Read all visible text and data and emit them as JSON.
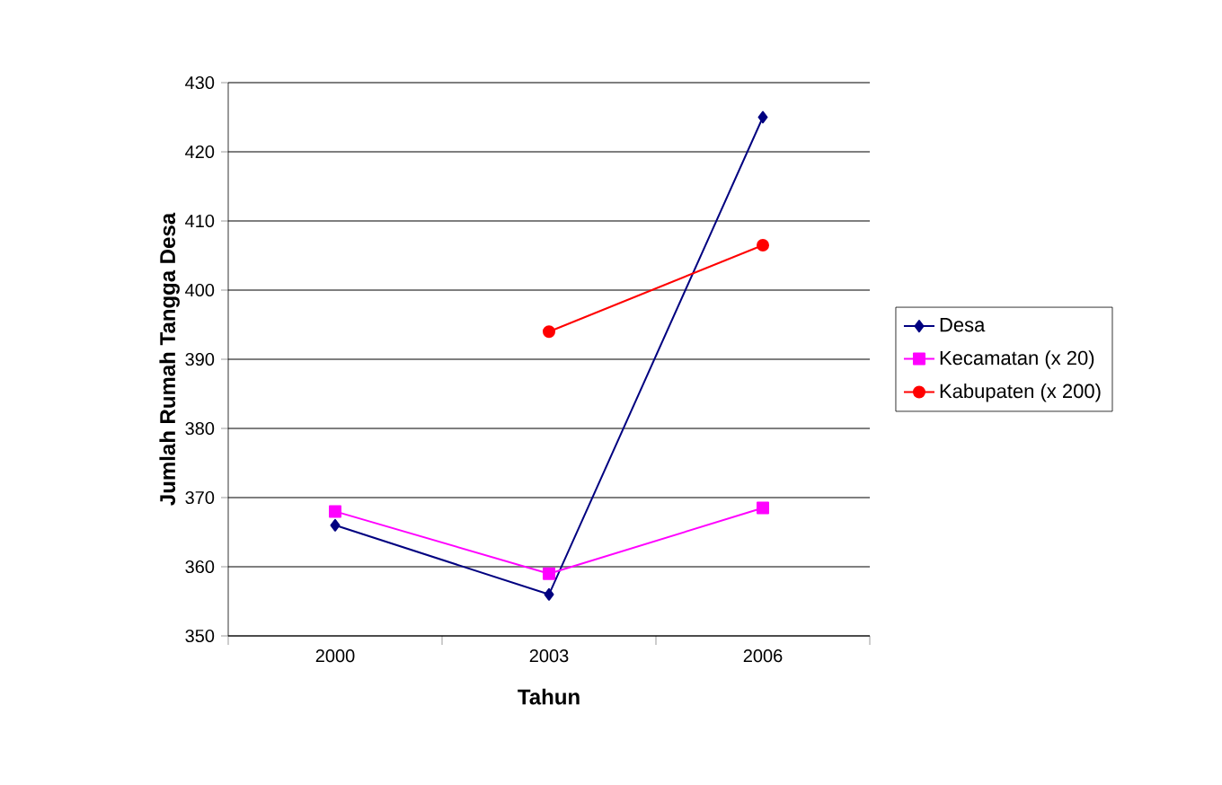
{
  "chart_data": {
    "type": "line",
    "xlabel": "Tahun",
    "ylabel": "Jumlah Rumah Tangga Desa",
    "categories": [
      "2000",
      "2003",
      "2006"
    ],
    "series": [
      {
        "name": "Desa",
        "color": "#000080",
        "marker": "diamond",
        "values": [
          366,
          356,
          425
        ]
      },
      {
        "name": "Kecamatan (x 20)",
        "color": "#ff00ff",
        "marker": "square",
        "values": [
          368,
          359,
          368.5
        ]
      },
      {
        "name": "Kabupaten (x 200)",
        "color": "#ff0000",
        "marker": "circle",
        "values": [
          null,
          394,
          406.5
        ]
      }
    ],
    "ylim": [
      350,
      430
    ],
    "yticks": [
      350,
      360,
      370,
      380,
      390,
      400,
      410,
      420,
      430
    ],
    "grid": "y",
    "legend": "right"
  }
}
